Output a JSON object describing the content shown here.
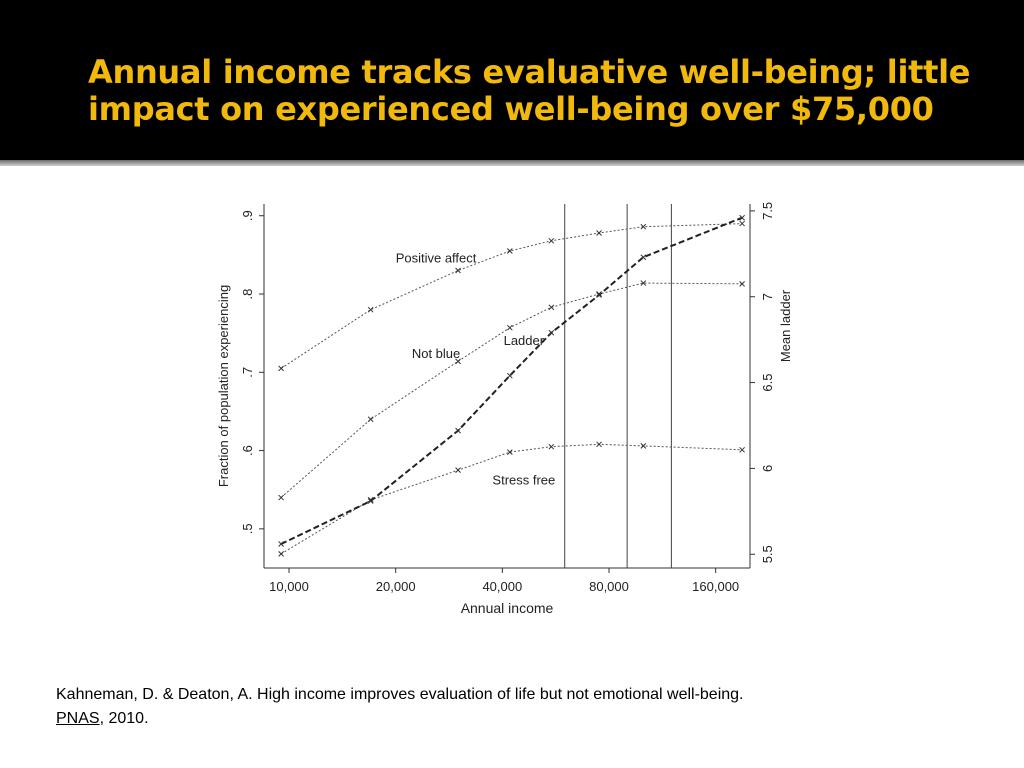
{
  "slide": {
    "title_lines": [
      "Annual income tracks evaluative well-being; little",
      "impact on experienced well-being over $75,000"
    ],
    "citation": {
      "text": "Kahneman, D. & Deaton, A.  High income improves evaluation of life but not emotional well-being.",
      "journal": "PNAS",
      "year_suffix": ", 2010."
    },
    "colors": {
      "header_bg": "#000000",
      "title": "#f0b90b"
    }
  },
  "chart_data": {
    "type": "line",
    "xlabel": "Annual income",
    "ylabel_left": "Fraction of population experiencing",
    "ylabel_right": "Mean ladder",
    "x_scale": "log",
    "x_ticks": [
      10000,
      20000,
      40000,
      80000,
      160000
    ],
    "x_tick_labels": [
      "10,000",
      "20,000",
      "40,000",
      "80,000",
      "160,000"
    ],
    "xlim": [
      8500,
      200000
    ],
    "y_left_ticks": [
      0.5,
      0.6,
      0.7,
      0.8,
      0.9
    ],
    "y_left_tick_labels": [
      ".5",
      ".6",
      ".7",
      ".8",
      ".9"
    ],
    "ylim_left": [
      0.45,
      0.915
    ],
    "y_right_ticks": [
      5.5,
      6,
      6.5,
      7,
      7.5
    ],
    "y_right_tick_labels": [
      "5.5",
      "6",
      "6.5",
      "7",
      "7.5"
    ],
    "ylim_right": [
      5.42,
      7.54
    ],
    "vertical_lines": [
      60000,
      90000,
      120000
    ],
    "grid": false,
    "series": [
      {
        "name": "Positive affect",
        "axis": "left",
        "style": "dotted",
        "x": [
          9500,
          17000,
          30000,
          42000,
          55000,
          75000,
          100000,
          190000
        ],
        "y": [
          0.705,
          0.78,
          0.83,
          0.855,
          0.868,
          0.878,
          0.886,
          0.89
        ]
      },
      {
        "name": "Not blue",
        "axis": "left",
        "style": "dotted",
        "x": [
          9500,
          17000,
          30000,
          42000,
          55000,
          75000,
          100000,
          190000
        ],
        "y": [
          0.54,
          0.64,
          0.714,
          0.757,
          0.783,
          0.8,
          0.814,
          0.813
        ]
      },
      {
        "name": "Stress free",
        "axis": "left",
        "style": "dotted",
        "x": [
          9500,
          17000,
          30000,
          42000,
          55000,
          75000,
          100000,
          190000
        ],
        "y": [
          0.468,
          0.537,
          0.575,
          0.598,
          0.605,
          0.608,
          0.606,
          0.601
        ]
      },
      {
        "name": "Ladder",
        "axis": "right",
        "style": "dashed",
        "x": [
          9500,
          17000,
          30000,
          42000,
          55000,
          75000,
          100000,
          190000
        ],
        "y": [
          5.56,
          5.81,
          6.22,
          6.54,
          6.79,
          7.01,
          7.23,
          7.46
        ]
      }
    ]
  }
}
